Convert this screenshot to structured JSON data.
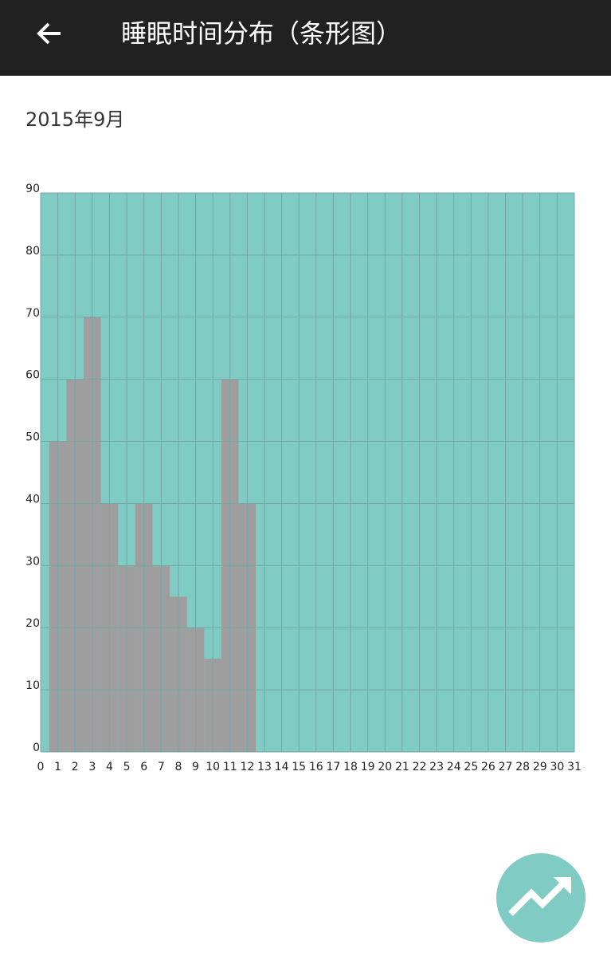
{
  "app_bar": {
    "title": "睡眠时间分布（条形图）"
  },
  "subtitle": "2015年9月",
  "chart_data": {
    "type": "bar",
    "x": [
      1,
      2,
      3,
      4,
      5,
      6,
      7,
      8,
      9,
      10,
      11,
      12
    ],
    "values": [
      50,
      60,
      70,
      40,
      30,
      40,
      30,
      25,
      20,
      15,
      60,
      40
    ],
    "color": "#9e9e9e",
    "plot_background": "#80cbc4",
    "grid": true,
    "grid_color": "#73a8a3",
    "xlim": [
      0,
      31
    ],
    "xticks": [
      0,
      1,
      2,
      3,
      4,
      5,
      6,
      7,
      8,
      9,
      10,
      11,
      12,
      13,
      14,
      15,
      16,
      17,
      18,
      19,
      20,
      21,
      22,
      23,
      24,
      25,
      26,
      27,
      28,
      29,
      30,
      31
    ],
    "ylim": [
      0,
      90
    ],
    "yticks": [
      0,
      10,
      20,
      30,
      40,
      50,
      60,
      70,
      80,
      90
    ]
  }
}
